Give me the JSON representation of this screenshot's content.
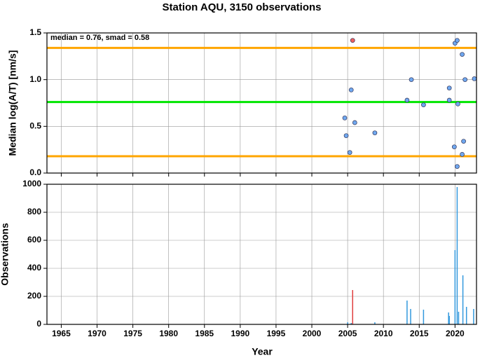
{
  "chart_data": [
    {
      "type": "scatter",
      "title": "Station AQU, 3150 observations",
      "annotation": "median = 0.76, smad = 0.58",
      "ylabel": "Median log(A/T) [nm/s]",
      "xlim": [
        1963,
        2023
      ],
      "xticks": [
        1965,
        1970,
        1975,
        1980,
        1985,
        1990,
        1995,
        2000,
        2005,
        2010,
        2015,
        2020
      ],
      "ylim": [
        0,
        1.5
      ],
      "yticks": [
        {
          "value": 0,
          "label": "0.0"
        },
        0.5,
        {
          "value": 1,
          "label": "1.0"
        },
        1.5
      ],
      "grid": true,
      "hlines": [
        {
          "value": 1.34,
          "color": "#ffa500"
        },
        {
          "value": 0.76,
          "color": "#00e600"
        },
        {
          "value": 0.18,
          "color": "#ffa500"
        }
      ],
      "x": [
        2004.6,
        2004.8,
        2005.3,
        2005.5,
        2005.7,
        2006.0,
        2008.8,
        2013.3,
        2013.9,
        2015.6,
        2019.2,
        2019.2,
        2019.9,
        2020.0,
        2020.3,
        2020.3,
        2020.4,
        2021.0,
        2021.2,
        2021.0,
        2021.4,
        2022.7
      ],
      "values": [
        0.59,
        0.4,
        0.22,
        0.89,
        1.42,
        0.54,
        0.43,
        0.78,
        1.0,
        0.73,
        0.91,
        0.78,
        0.28,
        1.39,
        1.42,
        0.07,
        0.74,
        1.27,
        0.34,
        0.2,
        1.0,
        1.01
      ],
      "colors": [
        "#6fa8f0",
        "#6fa8f0",
        "#6fa8f0",
        "#6fa8f0",
        "#f06060",
        "#6fa8f0",
        "#6fa8f0",
        "#6fa8f0",
        "#6fa8f0",
        "#6fa8f0",
        "#6fa8f0",
        "#6fa8f0",
        "#6fa8f0",
        "#6fa8f0",
        "#6fa8f0",
        "#6fa8f0",
        "#6fa8f0",
        "#6fa8f0",
        "#6fa8f0",
        "#6fa8f0",
        "#6fa8f0",
        "#6fa8f0"
      ]
    },
    {
      "type": "bar",
      "xlabel": "Year",
      "ylabel": "Observations",
      "xlim": [
        1963,
        2023
      ],
      "xticks": [
        1965,
        1970,
        1975,
        1980,
        1985,
        1990,
        1995,
        2000,
        2005,
        2010,
        2015,
        2020
      ],
      "ylim": [
        0,
        1000
      ],
      "yticks": [
        0,
        200,
        400,
        600,
        800,
        1000
      ],
      "grid": true,
      "x": [
        2005.0,
        2005.5,
        2005.7,
        2008.8,
        2013.3,
        2013.8,
        2015.6,
        2019.1,
        2019.2,
        2020.0,
        2020.3,
        2020.5,
        2021.1,
        2021.6,
        2022.6
      ],
      "values": [
        15,
        10,
        245,
        15,
        170,
        110,
        105,
        85,
        60,
        530,
        980,
        90,
        350,
        125,
        110
      ],
      "colors": [
        "#3399dd",
        "#3399dd",
        "#e04040",
        "#3399dd",
        "#3399dd",
        "#3399dd",
        "#3399dd",
        "#3399dd",
        "#3399dd",
        "#3399dd",
        "#3399dd",
        "#3399dd",
        "#3399dd",
        "#3399dd",
        "#3399dd"
      ]
    }
  ]
}
